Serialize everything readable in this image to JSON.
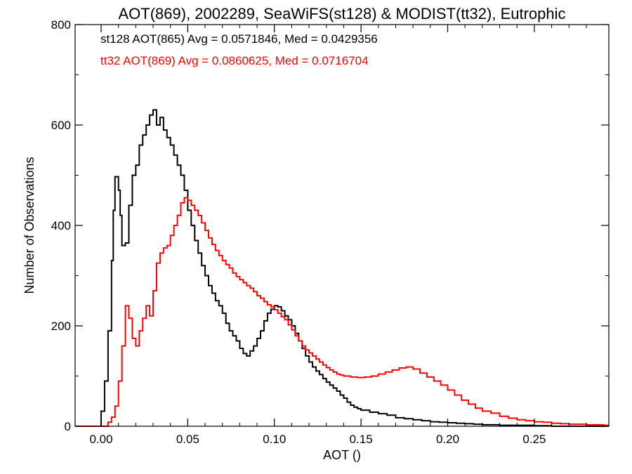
{
  "chart_data": {
    "type": "line",
    "title": "AOT(869), 2002289, SeaWiFS(st128) & MODIST(tt32), Eutrophic",
    "xlabel": "AOT ()",
    "ylabel": "Number of Observations",
    "xlim": [
      -0.015,
      0.293
    ],
    "ylim": [
      0,
      800
    ],
    "x_ticks": [
      0.0,
      0.05,
      0.1,
      0.15,
      0.2,
      0.25
    ],
    "x_tick_labels": [
      "0.00",
      "0.05",
      "0.10",
      "0.15",
      "0.20",
      "0.25"
    ],
    "y_ticks": [
      0,
      200,
      400,
      600,
      800
    ],
    "y_tick_labels": [
      "0",
      "200",
      "400",
      "600",
      "800"
    ],
    "grid": false,
    "step_style": "histogram",
    "annotations": [
      {
        "text": "st128 AOT(865) Avg = 0.0571846, Med = 0.0429356",
        "color": "#000000"
      },
      {
        "text": "tt32 AOT(869) Avg = 0.0860625, Med = 0.0716704",
        "color": "#ff0000"
      }
    ],
    "series": [
      {
        "color": "#000000",
        "points": [
          [
            -0.015,
            0
          ],
          [
            -0.001,
            0
          ],
          [
            0.0,
            30
          ],
          [
            0.002,
            90
          ],
          [
            0.004,
            190
          ],
          [
            0.006,
            330
          ],
          [
            0.007,
            430
          ],
          [
            0.008,
            497
          ],
          [
            0.01,
            470
          ],
          [
            0.011,
            420
          ],
          [
            0.012,
            360
          ],
          [
            0.014,
            365
          ],
          [
            0.016,
            440
          ],
          [
            0.018,
            500
          ],
          [
            0.02,
            520
          ],
          [
            0.022,
            560
          ],
          [
            0.024,
            580
          ],
          [
            0.026,
            600
          ],
          [
            0.028,
            620
          ],
          [
            0.03,
            630
          ],
          [
            0.032,
            600
          ],
          [
            0.034,
            615
          ],
          [
            0.036,
            590
          ],
          [
            0.038,
            575
          ],
          [
            0.04,
            560
          ],
          [
            0.042,
            540
          ],
          [
            0.044,
            520
          ],
          [
            0.046,
            500
          ],
          [
            0.048,
            470
          ],
          [
            0.05,
            430
          ],
          [
            0.052,
            400
          ],
          [
            0.054,
            370
          ],
          [
            0.056,
            345
          ],
          [
            0.058,
            320
          ],
          [
            0.06,
            300
          ],
          [
            0.062,
            280
          ],
          [
            0.064,
            265
          ],
          [
            0.066,
            250
          ],
          [
            0.068,
            240
          ],
          [
            0.07,
            225
          ],
          [
            0.072,
            205
          ],
          [
            0.074,
            190
          ],
          [
            0.076,
            180
          ],
          [
            0.078,
            170
          ],
          [
            0.08,
            155
          ],
          [
            0.082,
            145
          ],
          [
            0.084,
            140
          ],
          [
            0.086,
            150
          ],
          [
            0.088,
            160
          ],
          [
            0.09,
            175
          ],
          [
            0.092,
            190
          ],
          [
            0.094,
            210
          ],
          [
            0.096,
            225
          ],
          [
            0.098,
            233
          ],
          [
            0.1,
            240
          ],
          [
            0.102,
            238
          ],
          [
            0.104,
            230
          ],
          [
            0.106,
            220
          ],
          [
            0.108,
            212
          ],
          [
            0.11,
            200
          ],
          [
            0.112,
            185
          ],
          [
            0.114,
            170
          ],
          [
            0.116,
            155
          ],
          [
            0.118,
            140
          ],
          [
            0.12,
            128
          ],
          [
            0.122,
            118
          ],
          [
            0.124,
            110
          ],
          [
            0.126,
            103
          ],
          [
            0.128,
            95
          ],
          [
            0.13,
            88
          ],
          [
            0.132,
            82
          ],
          [
            0.134,
            76
          ],
          [
            0.136,
            70
          ],
          [
            0.138,
            62
          ],
          [
            0.14,
            56
          ],
          [
            0.142,
            48
          ],
          [
            0.144,
            42
          ],
          [
            0.146,
            38
          ],
          [
            0.148,
            35
          ],
          [
            0.15,
            32
          ],
          [
            0.155,
            28
          ],
          [
            0.16,
            25
          ],
          [
            0.165,
            22
          ],
          [
            0.17,
            17
          ],
          [
            0.175,
            15
          ],
          [
            0.18,
            13
          ],
          [
            0.185,
            11
          ],
          [
            0.19,
            9
          ],
          [
            0.195,
            8
          ],
          [
            0.2,
            7
          ],
          [
            0.205,
            6
          ],
          [
            0.21,
            5
          ],
          [
            0.215,
            4
          ],
          [
            0.22,
            3
          ],
          [
            0.225,
            3
          ],
          [
            0.23,
            2
          ],
          [
            0.24,
            2
          ],
          [
            0.25,
            1
          ],
          [
            0.26,
            0
          ],
          [
            0.293,
            0
          ]
        ]
      },
      {
        "color": "#ff0000",
        "points": [
          [
            -0.015,
            0
          ],
          [
            0.002,
            0
          ],
          [
            0.004,
            8
          ],
          [
            0.006,
            18
          ],
          [
            0.008,
            40
          ],
          [
            0.01,
            90
          ],
          [
            0.012,
            160
          ],
          [
            0.014,
            240
          ],
          [
            0.016,
            215
          ],
          [
            0.018,
            175
          ],
          [
            0.02,
            160
          ],
          [
            0.022,
            190
          ],
          [
            0.024,
            215
          ],
          [
            0.026,
            240
          ],
          [
            0.028,
            220
          ],
          [
            0.03,
            270
          ],
          [
            0.032,
            325
          ],
          [
            0.034,
            345
          ],
          [
            0.036,
            355
          ],
          [
            0.038,
            360
          ],
          [
            0.04,
            380
          ],
          [
            0.042,
            400
          ],
          [
            0.044,
            420
          ],
          [
            0.046,
            445
          ],
          [
            0.048,
            455
          ],
          [
            0.05,
            450
          ],
          [
            0.052,
            440
          ],
          [
            0.054,
            430
          ],
          [
            0.056,
            420
          ],
          [
            0.058,
            405
          ],
          [
            0.06,
            390
          ],
          [
            0.062,
            375
          ],
          [
            0.064,
            362
          ],
          [
            0.066,
            350
          ],
          [
            0.068,
            340
          ],
          [
            0.07,
            330
          ],
          [
            0.072,
            322
          ],
          [
            0.074,
            315
          ],
          [
            0.076,
            305
          ],
          [
            0.078,
            298
          ],
          [
            0.08,
            292
          ],
          [
            0.082,
            286
          ],
          [
            0.084,
            280
          ],
          [
            0.086,
            275
          ],
          [
            0.088,
            268
          ],
          [
            0.09,
            260
          ],
          [
            0.092,
            255
          ],
          [
            0.094,
            248
          ],
          [
            0.096,
            242
          ],
          [
            0.098,
            238
          ],
          [
            0.1,
            232
          ],
          [
            0.102,
            225
          ],
          [
            0.104,
            218
          ],
          [
            0.106,
            212
          ],
          [
            0.108,
            202
          ],
          [
            0.11,
            192
          ],
          [
            0.112,
            180
          ],
          [
            0.114,
            170
          ],
          [
            0.116,
            160
          ],
          [
            0.118,
            152
          ],
          [
            0.12,
            146
          ],
          [
            0.122,
            140
          ],
          [
            0.124,
            134
          ],
          [
            0.126,
            128
          ],
          [
            0.128,
            122
          ],
          [
            0.13,
            117
          ],
          [
            0.132,
            112
          ],
          [
            0.134,
            108
          ],
          [
            0.136,
            104
          ],
          [
            0.138,
            102
          ],
          [
            0.14,
            100
          ],
          [
            0.144,
            98
          ],
          [
            0.148,
            97
          ],
          [
            0.152,
            98
          ],
          [
            0.156,
            100
          ],
          [
            0.16,
            104
          ],
          [
            0.164,
            108
          ],
          [
            0.168,
            112
          ],
          [
            0.172,
            116
          ],
          [
            0.176,
            118
          ],
          [
            0.18,
            114
          ],
          [
            0.184,
            106
          ],
          [
            0.188,
            98
          ],
          [
            0.192,
            90
          ],
          [
            0.196,
            82
          ],
          [
            0.2,
            72
          ],
          [
            0.204,
            62
          ],
          [
            0.208,
            52
          ],
          [
            0.212,
            44
          ],
          [
            0.216,
            36
          ],
          [
            0.22,
            30
          ],
          [
            0.225,
            26
          ],
          [
            0.23,
            20
          ],
          [
            0.235,
            16
          ],
          [
            0.24,
            13
          ],
          [
            0.245,
            11
          ],
          [
            0.25,
            9
          ],
          [
            0.255,
            8
          ],
          [
            0.26,
            6
          ],
          [
            0.265,
            5
          ],
          [
            0.27,
            4
          ],
          [
            0.275,
            4
          ],
          [
            0.28,
            3
          ],
          [
            0.285,
            3
          ],
          [
            0.29,
            2
          ],
          [
            0.293,
            2
          ]
        ]
      }
    ]
  }
}
